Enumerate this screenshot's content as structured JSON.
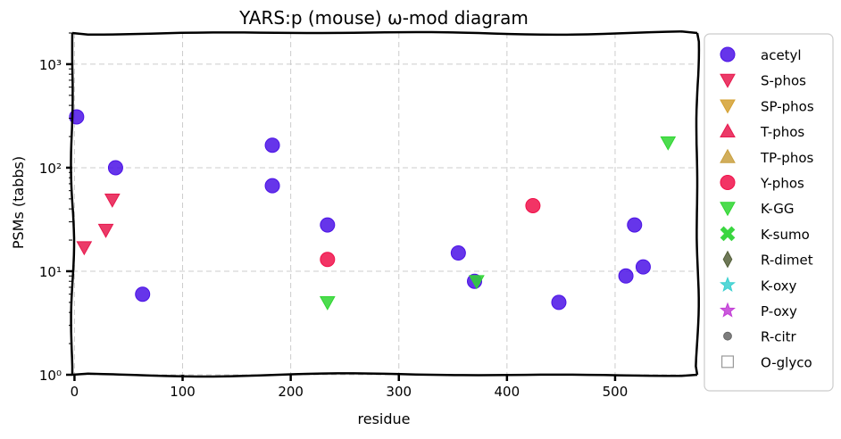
{
  "chart_data": {
    "type": "scatter",
    "title": "YARS:p (mouse) ω-mod diagram",
    "xlabel": "residue",
    "ylabel": "PSMs (tabbs)",
    "xlim": [
      -2,
      576
    ],
    "ylim": [
      1,
      2000
    ],
    "yscale": "log",
    "x_ticks": [
      0,
      100,
      200,
      300,
      400,
      500
    ],
    "y_ticks": [
      {
        "value": 1,
        "label": "10⁰"
      },
      {
        "value": 10,
        "label": "10¹"
      },
      {
        "value": 100,
        "label": "10²"
      },
      {
        "value": 1000,
        "label": "10³"
      }
    ],
    "grid": true,
    "legend_position": "outside-right",
    "series": [
      {
        "name": "acetyl",
        "marker": "circle",
        "color": "#4b12e6",
        "points": [
          [
            2,
            310
          ],
          [
            38,
            100
          ],
          [
            63,
            6
          ],
          [
            183,
            165
          ],
          [
            183,
            67
          ],
          [
            234,
            28
          ],
          [
            355,
            15
          ],
          [
            370,
            8
          ],
          [
            448,
            5
          ],
          [
            510,
            9
          ],
          [
            518,
            28
          ],
          [
            526,
            11
          ]
        ]
      },
      {
        "name": "S-phos",
        "marker": "triangle-down",
        "color": "#e8194e",
        "points": [
          [
            9,
            17
          ],
          [
            29,
            25
          ],
          [
            35,
            49
          ]
        ]
      },
      {
        "name": "SP-phos",
        "marker": "triangle-down",
        "color": "#d4a030",
        "points": []
      },
      {
        "name": "T-phos",
        "marker": "triangle-up",
        "color": "#e8194e",
        "points": []
      },
      {
        "name": "TP-phos",
        "marker": "triangle-up",
        "color": "#c9a040",
        "points": []
      },
      {
        "name": "Y-phos",
        "marker": "circle",
        "color": "#f0104a",
        "points": [
          [
            234,
            13
          ],
          [
            424,
            43
          ]
        ]
      },
      {
        "name": "K-GG",
        "marker": "triangle-down",
        "color": "#2ed630",
        "points": [
          [
            234,
            5
          ],
          [
            372,
            8
          ],
          [
            549,
            175
          ]
        ]
      },
      {
        "name": "K-sumo",
        "marker": "x",
        "color": "#3ad640",
        "points": []
      },
      {
        "name": "R-dimet",
        "marker": "diamond",
        "color": "#55603a",
        "points": []
      },
      {
        "name": "K-oxy",
        "marker": "star",
        "color": "#3ad0d0",
        "points": []
      },
      {
        "name": "P-oxy",
        "marker": "star",
        "color": "#c23ed6",
        "points": []
      },
      {
        "name": "R-citr",
        "marker": "dot",
        "color": "#666666",
        "points": []
      },
      {
        "name": "O-glyco",
        "marker": "square-open",
        "color": "#999999",
        "points": []
      }
    ]
  }
}
